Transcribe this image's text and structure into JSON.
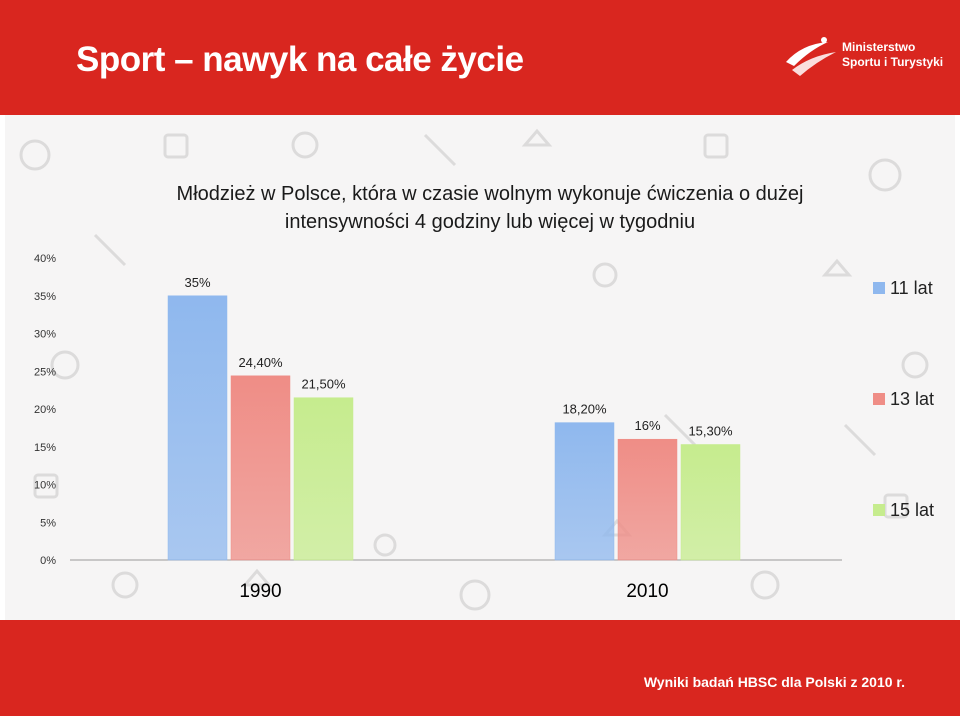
{
  "header": {
    "title": "Sport – nawyk na całe życie",
    "logo_line1": "Ministerstwo",
    "logo_line2": "Sportu i Turystyki",
    "accent_color": "#d9261f"
  },
  "footer": {
    "note": "Wyniki badań HBSC dla Polski z 2010 r."
  },
  "chart_data": {
    "type": "bar",
    "title_line1": "Młodzież w Polsce, która w czasie wolnym wykonuje ćwiczenia o dużej",
    "title_line2": "intensywności 4 godziny lub więcej w tygodniu",
    "categories": [
      "1990",
      "2010"
    ],
    "series": [
      {
        "name": "11 lat",
        "values": [
          35,
          18.2
        ],
        "labels": [
          "35%",
          "18,20%"
        ],
        "color": "#8fb8ee"
      },
      {
        "name": "13 lat",
        "values": [
          24.4,
          16
        ],
        "labels": [
          "24,40%",
          "16%"
        ],
        "color": "#ef8d86"
      },
      {
        "name": "15 lat",
        "values": [
          21.5,
          15.3
        ],
        "labels": [
          "21,50%",
          "15,30%"
        ],
        "color": "#c6ec8e"
      }
    ],
    "ylim": [
      0,
      40
    ],
    "yticks": [
      "0%",
      "5%",
      "10%",
      "15%",
      "20%",
      "25%",
      "30%",
      "35%",
      "40%"
    ],
    "grid": false,
    "legend_position": "right"
  }
}
